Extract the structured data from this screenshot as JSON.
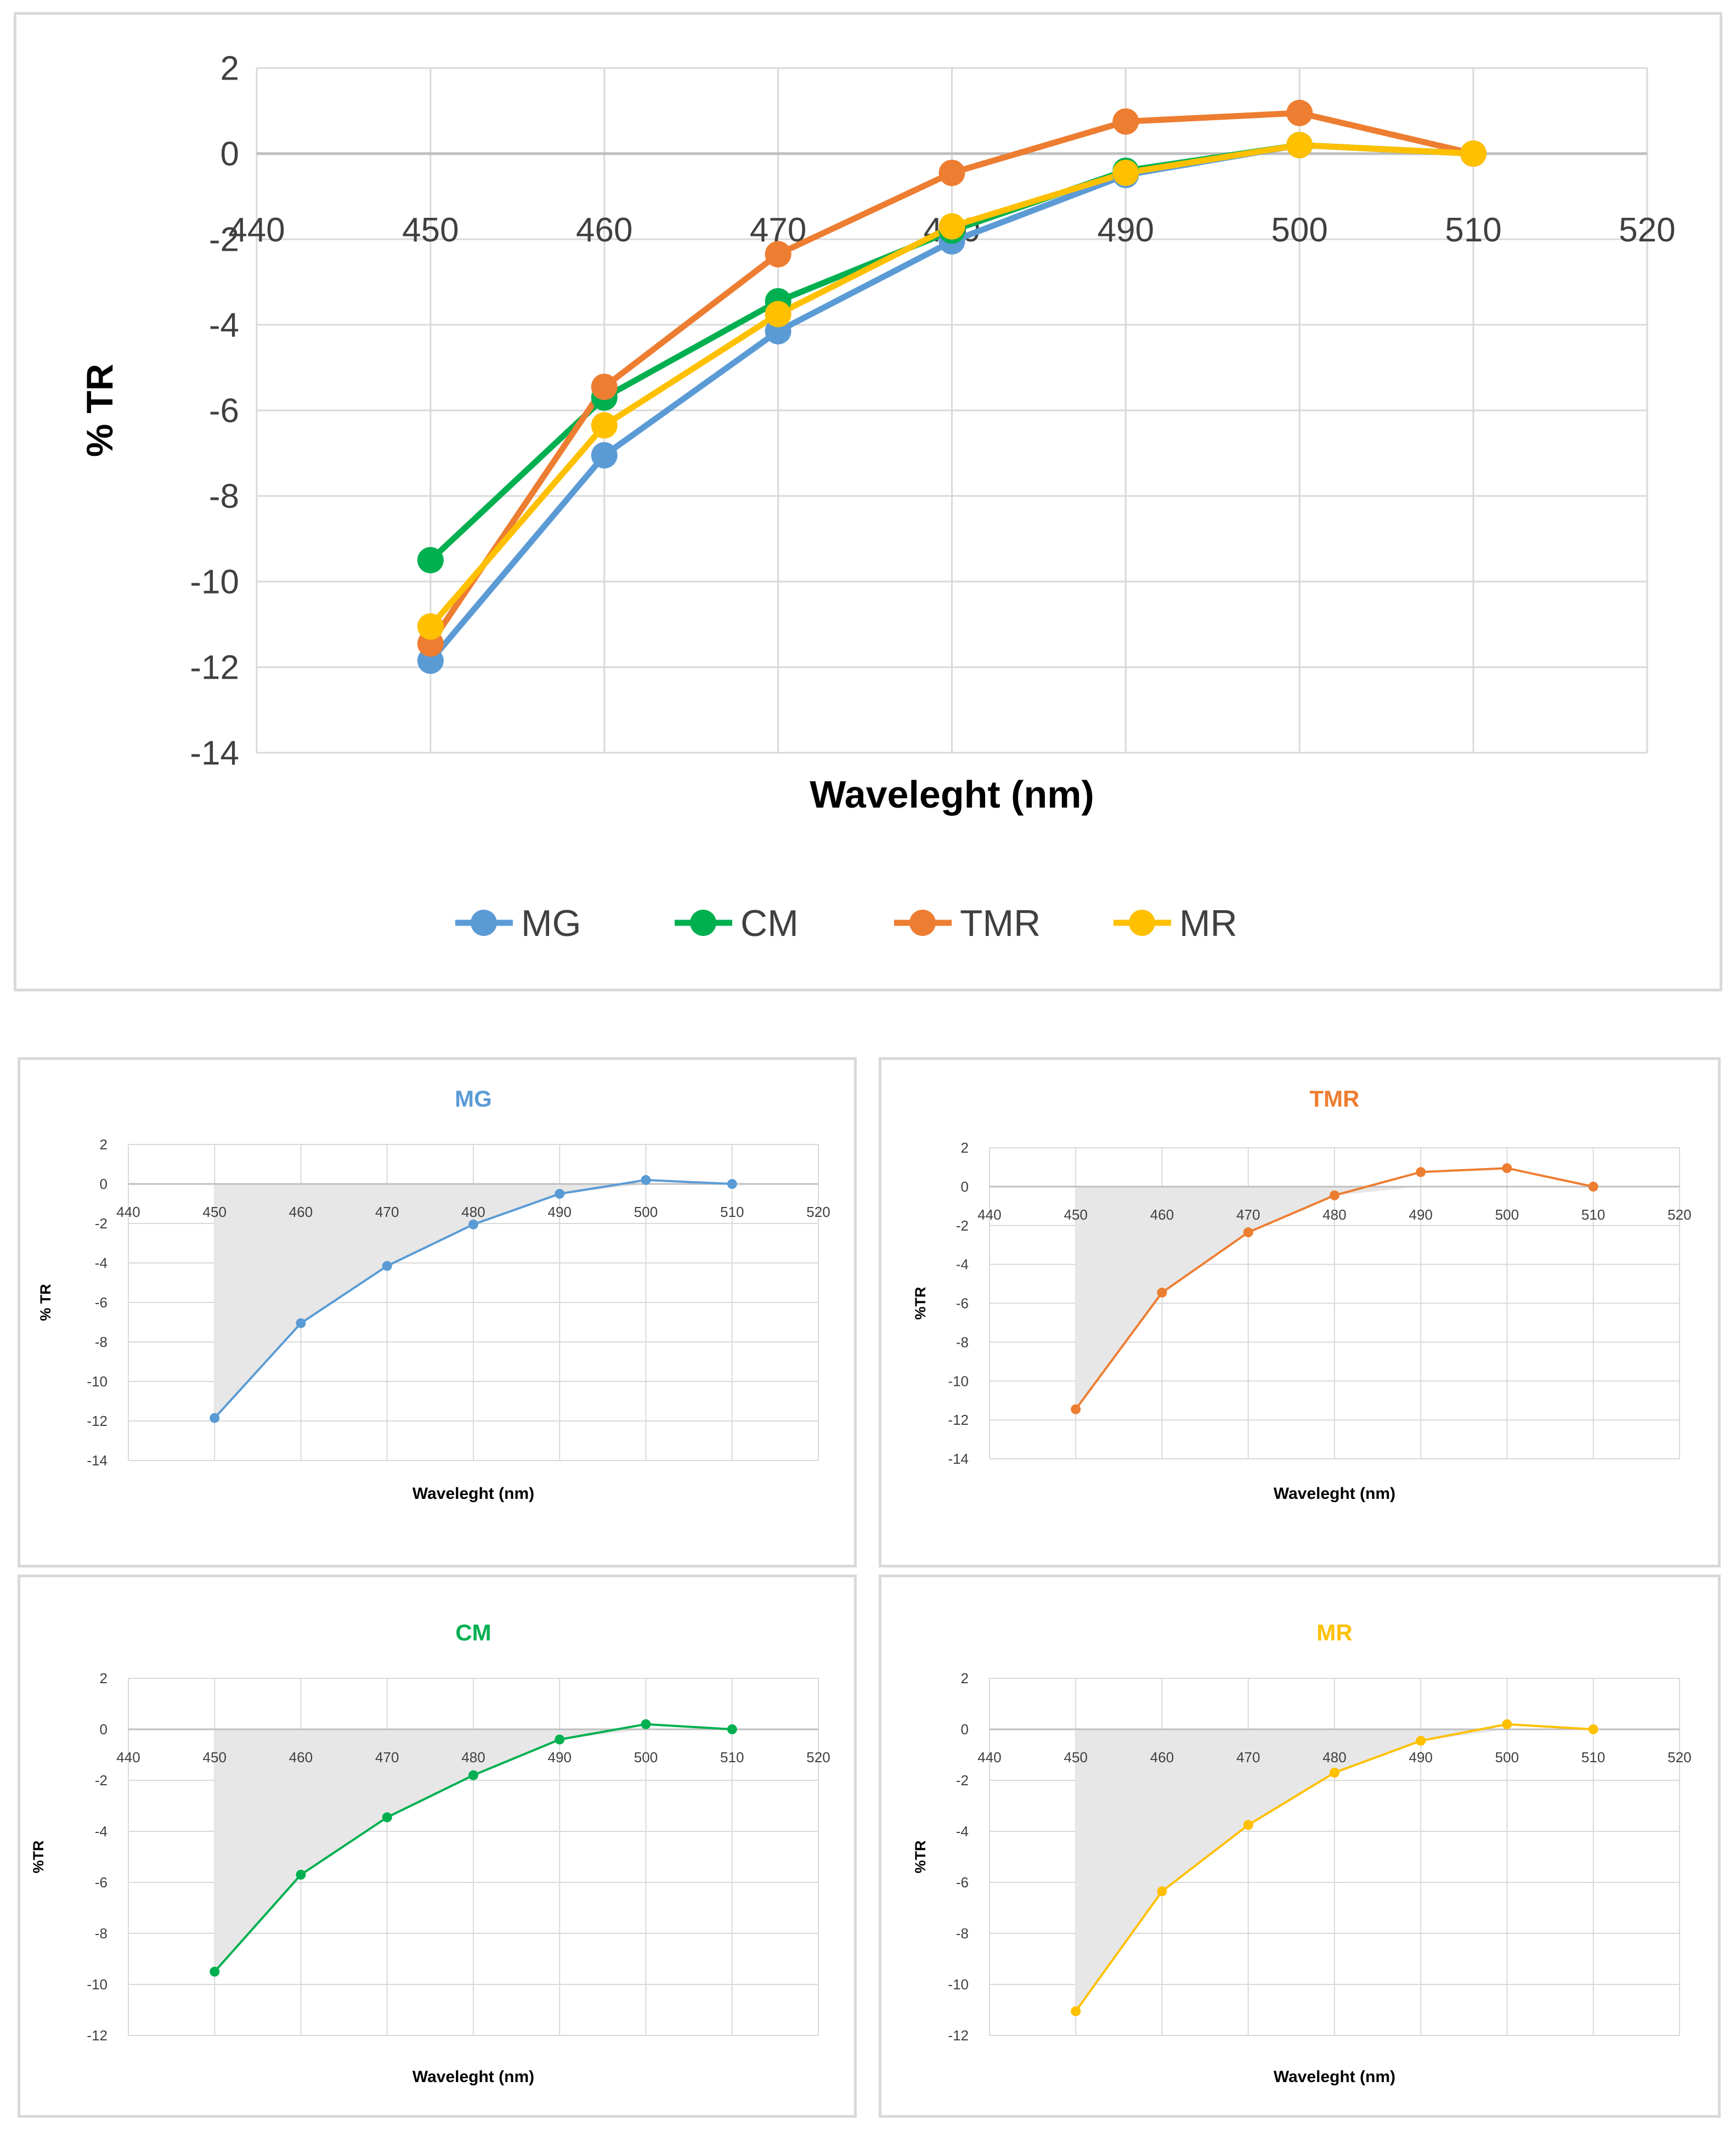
{
  "chart_data": [
    {
      "id": "main",
      "type": "line",
      "title": "",
      "xlabel": "Waveleght (nm)",
      "ylabel": "% TR",
      "xlim": [
        440,
        520
      ],
      "ylim": [
        -14,
        2
      ],
      "xticks": [
        440,
        450,
        460,
        470,
        480,
        490,
        500,
        510,
        520
      ],
      "yticks": [
        -14,
        -12,
        -10,
        -8,
        -6,
        -4,
        -2,
        0,
        2
      ],
      "grid": true,
      "legend": "bottom",
      "x": [
        450,
        460,
        470,
        480,
        490,
        500,
        510
      ],
      "series": [
        {
          "name": "MG",
          "color": "#5b9bd5",
          "values": [
            -11.85,
            -7.05,
            -4.15,
            -2.05,
            -0.5,
            0.2,
            0
          ]
        },
        {
          "name": "CM",
          "color": "#00b050",
          "values": [
            -9.5,
            -5.7,
            -3.45,
            -1.8,
            -0.4,
            0.2,
            0
          ]
        },
        {
          "name": "TMR",
          "color": "#ed7d31",
          "values": [
            -11.45,
            -5.45,
            -2.35,
            -0.45,
            0.75,
            0.95,
            0
          ]
        },
        {
          "name": "MR",
          "color": "#ffc000",
          "values": [
            -11.05,
            -6.35,
            -3.75,
            -1.7,
            -0.45,
            0.2,
            0
          ]
        }
      ]
    },
    {
      "id": "mg",
      "type": "area",
      "title": "MG",
      "xlabel": "Waveleght (nm)",
      "ylabel": "% TR",
      "xlim": [
        440,
        520
      ],
      "ylim": [
        -14,
        2
      ],
      "xticks": [
        440,
        450,
        460,
        470,
        480,
        490,
        500,
        510,
        520
      ],
      "yticks": [
        -14,
        -12,
        -10,
        -8,
        -6,
        -4,
        -2,
        0,
        2
      ],
      "grid": true,
      "x": [
        450,
        460,
        470,
        480,
        490,
        500,
        510
      ],
      "series": [
        {
          "name": "MG",
          "color": "#5b9bd5",
          "values": [
            -11.85,
            -7.05,
            -4.15,
            -2.05,
            -0.5,
            0.2,
            0
          ]
        }
      ]
    },
    {
      "id": "tmr",
      "type": "area",
      "title": "TMR",
      "xlabel": "Waveleght (nm)",
      "ylabel": "%TR",
      "xlim": [
        440,
        520
      ],
      "ylim": [
        -14,
        2
      ],
      "xticks": [
        440,
        450,
        460,
        470,
        480,
        490,
        500,
        510,
        520
      ],
      "yticks": [
        -14,
        -12,
        -10,
        -8,
        -6,
        -4,
        -2,
        0,
        2
      ],
      "grid": true,
      "x": [
        450,
        460,
        470,
        480,
        490,
        500,
        510
      ],
      "series": [
        {
          "name": "TMR",
          "color": "#ed7d31",
          "values": [
            -11.45,
            -5.45,
            -2.35,
            -0.45,
            0.75,
            0.95,
            0
          ]
        }
      ]
    },
    {
      "id": "cm",
      "type": "area",
      "title": "CM",
      "xlabel": "Waveleght (nm)",
      "ylabel": "%TR",
      "xlim": [
        440,
        520
      ],
      "ylim": [
        -12,
        2
      ],
      "xticks": [
        440,
        450,
        460,
        470,
        480,
        490,
        500,
        510,
        520
      ],
      "yticks": [
        -12,
        -10,
        -8,
        -6,
        -4,
        -2,
        0,
        2
      ],
      "grid": true,
      "x": [
        450,
        460,
        470,
        480,
        490,
        500,
        510
      ],
      "series": [
        {
          "name": "CM",
          "color": "#00b050",
          "values": [
            -9.5,
            -5.7,
            -3.45,
            -1.8,
            -0.4,
            0.2,
            0
          ]
        }
      ]
    },
    {
      "id": "mr",
      "type": "area",
      "title": "MR",
      "xlabel": "Waveleght (nm)",
      "ylabel": "%TR",
      "xlim": [
        440,
        520
      ],
      "ylim": [
        -12,
        2
      ],
      "xticks": [
        440,
        450,
        460,
        470,
        480,
        490,
        500,
        510,
        520
      ],
      "yticks": [
        -12,
        -10,
        -8,
        -6,
        -4,
        -2,
        0,
        2
      ],
      "grid": true,
      "x": [
        450,
        460,
        470,
        480,
        490,
        500,
        510
      ],
      "series": [
        {
          "name": "MR",
          "color": "#ffc000",
          "values": [
            -11.05,
            -6.35,
            -3.75,
            -1.7,
            -0.45,
            0.2,
            0
          ]
        }
      ]
    }
  ]
}
